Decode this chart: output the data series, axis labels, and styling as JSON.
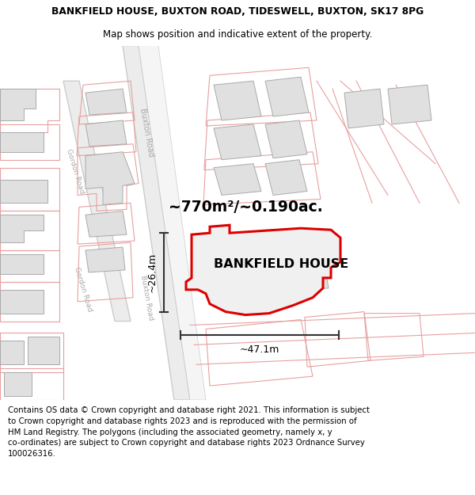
{
  "title": "BANKFIELD HOUSE, BUXTON ROAD, TIDESWELL, BUXTON, SK17 8PG",
  "subtitle": "Map shows position and indicative extent of the property.",
  "footer_text": "Contains OS data © Crown copyright and database right 2021. This information is subject to Crown copyright and database rights 2023 and is reproduced with the permission of HM Land Registry. The polygons (including the associated geometry, namely x, y co-ordinates) are subject to Crown copyright and database rights 2023 Ordnance Survey 100026316.",
  "area_label": "~770m²/~0.190ac.",
  "property_label": "BANKFIELD HOUSE",
  "dim_width": "~47.1m",
  "dim_height": "~26.4m",
  "road_label1": "Buxton Road",
  "road_label2": "Gordon Road",
  "road_label3": "Gordon Road",
  "building_fill": "#e0e0e0",
  "building_edge": "#aaaaaa",
  "road_line_color": "#c8c8c8",
  "pink_line_color": "#e8a0a0",
  "red_poly_color": "#dd0000",
  "highlight_fill": "#f0f0f0",
  "dim_color": "#333333",
  "text_color": "#888888",
  "white": "#ffffff",
  "footer_bg": "#f0f0f0"
}
